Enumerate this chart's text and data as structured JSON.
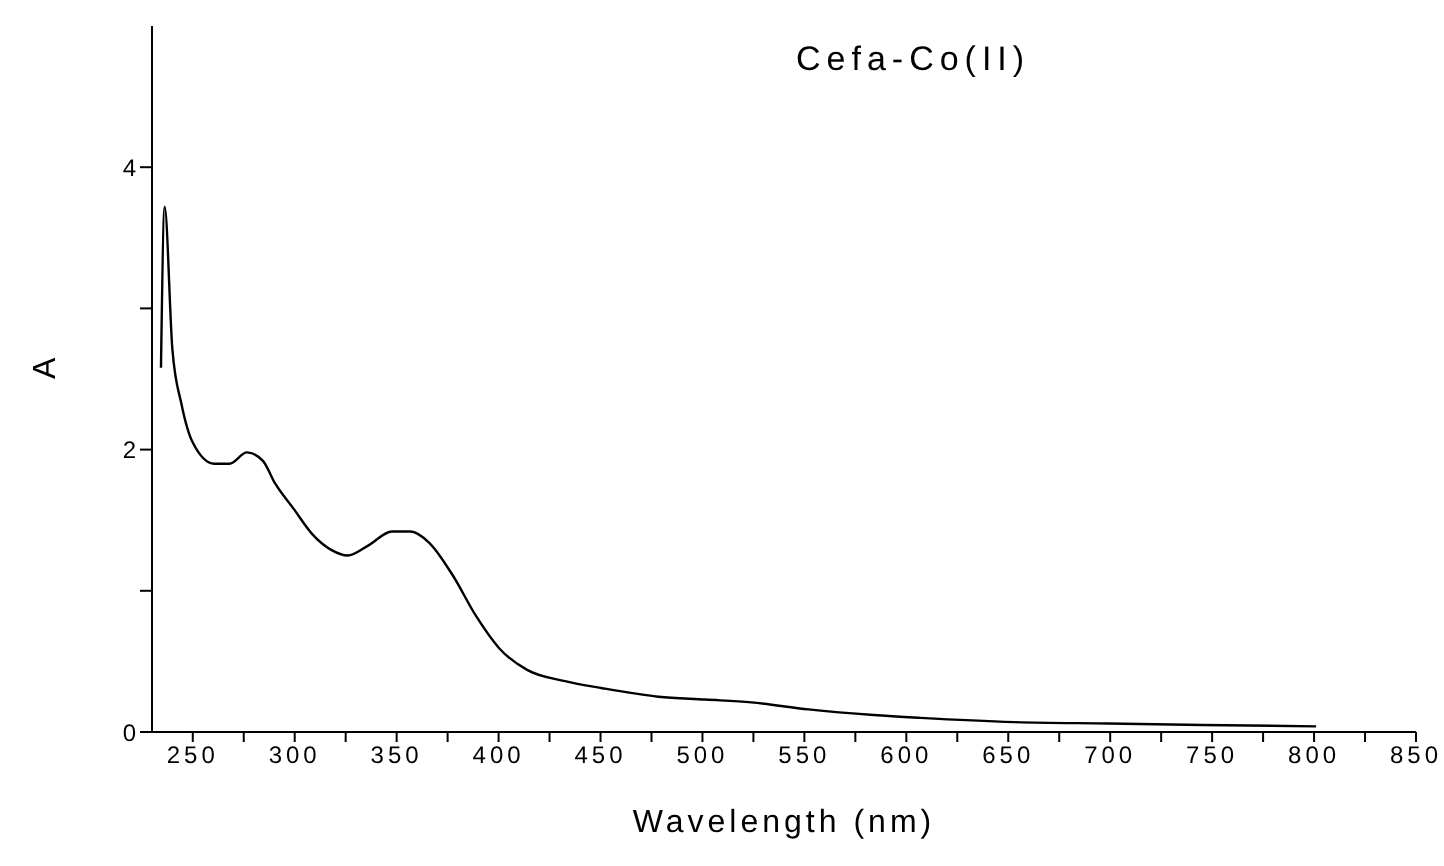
{
  "chart_data": {
    "type": "line",
    "title": "Cefa-Co(II)",
    "xlabel": "Wavelength (nm)",
    "ylabel": "A",
    "xlim": [
      230,
      850
    ],
    "ylim": [
      0,
      5
    ],
    "xticks": [
      250,
      {
        "value": 275,
        "label": null
      },
      300,
      {
        "value": 325,
        "label": null
      },
      350,
      {
        "value": 375,
        "label": null
      },
      400,
      {
        "value": 425,
        "label": null
      },
      450,
      {
        "value": 475,
        "label": null
      },
      500,
      {
        "value": 525,
        "label": null
      },
      550,
      {
        "value": 575,
        "label": null
      },
      600,
      {
        "value": 625,
        "label": null
      },
      650,
      {
        "value": 675,
        "label": null
      },
      700,
      {
        "value": 725,
        "label": null
      },
      750,
      {
        "value": 775,
        "label": null
      },
      800,
      {
        "value": 825,
        "label": null
      },
      850
    ],
    "yticks": [
      0,
      {
        "value": 1,
        "label": null
      },
      2,
      {
        "value": 3,
        "label": null
      },
      4
    ],
    "grid": false,
    "marker": "none",
    "line_style": "solid",
    "series": [
      {
        "color": "#000000",
        "x": [
          234.4,
          236.2,
          240,
          244.5,
          250,
          260.5,
          268,
          276.6,
          284.4,
          290.4,
          299.5,
          308.7,
          317.9,
          326,
          336,
          347.7,
          356.9,
          366,
          377.5,
          389,
          400.5,
          414,
          432.6,
          450.9,
          478.4,
          501.4,
          524,
          552,
          584,
          607,
          653,
          699,
          745,
          801
        ],
        "values": [
          2.58,
          3.72,
          2.71,
          2.32,
          2.05,
          1.9,
          1.9,
          1.98,
          1.92,
          1.76,
          1.58,
          1.4,
          1.29,
          1.25,
          1.32,
          1.42,
          1.42,
          1.34,
          1.11,
          0.82,
          0.59,
          0.44,
          0.36,
          0.31,
          0.25,
          0.23,
          0.21,
          0.16,
          0.12,
          0.1,
          0.07,
          0.06,
          0.05,
          0.04
        ]
      }
    ]
  }
}
